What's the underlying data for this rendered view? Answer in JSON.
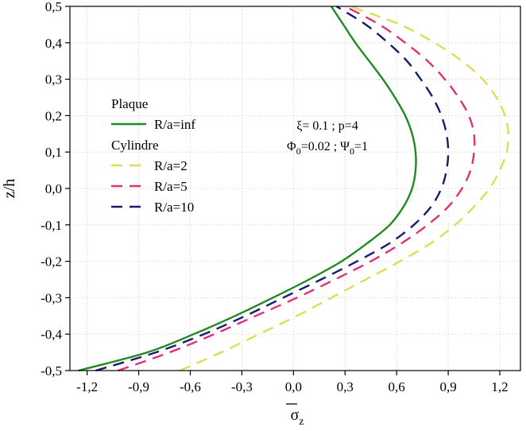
{
  "chart_data": {
    "type": "line",
    "title": "",
    "xlabel": "σz",
    "xlabel_symbol": "σ",
    "xlabel_subscript": "z",
    "ylabel": "z/h",
    "xlim": [
      -1.3,
      1.32
    ],
    "ylim": [
      -0.5,
      0.5
    ],
    "grid": true,
    "x_ticks": [
      -1.2,
      -0.9,
      -0.6,
      -0.3,
      0.0,
      0.3,
      0.6,
      0.9,
      1.2
    ],
    "x_tick_labels": [
      "-1,2",
      "-0,9",
      "-0,6",
      "-0,3",
      "0,0",
      "0,3",
      "0,6",
      "0,9",
      "1,2"
    ],
    "y_ticks": [
      -0.5,
      -0.4,
      -0.3,
      -0.2,
      -0.1,
      0.0,
      0.1,
      0.2,
      0.3,
      0.4,
      0.5
    ],
    "y_tick_labels": [
      "-0,5",
      "-0,4",
      "-0,3",
      "-0,2",
      "-0,1",
      "0,0",
      "0,1",
      "0,2",
      "0,3",
      "0,4",
      "0,5"
    ],
    "legend_position": "top-left",
    "legend_groups": [
      {
        "title": "Plaque",
        "entries": [
          0
        ]
      },
      {
        "title": "Cylindre",
        "entries": [
          1,
          2,
          3
        ]
      }
    ],
    "annotation_lines": [
      {
        "parts": [
          {
            "text": "ξ= 0.1 ; p=4"
          }
        ]
      },
      {
        "parts": [
          {
            "text": "Φ"
          },
          {
            "text": "0",
            "sub": true
          },
          {
            "text": "=0.02 ; "
          },
          {
            "text": "Ψ"
          },
          {
            "text": "0",
            "sub": true
          },
          {
            "text": "=1"
          }
        ]
      }
    ],
    "series": [
      {
        "name": "R/a=inf",
        "color": "#1f8a1f",
        "dash": "solid",
        "y": [
          -0.5,
          -0.45,
          -0.4,
          -0.35,
          -0.3,
          -0.25,
          -0.2,
          -0.15,
          -0.1,
          -0.05,
          0.0,
          0.05,
          0.1,
          0.15,
          0.2,
          0.25,
          0.3,
          0.35,
          0.4,
          0.45,
          0.5
        ],
        "x": [
          -1.25,
          -0.85,
          -0.58,
          -0.34,
          -0.12,
          0.09,
          0.28,
          0.43,
          0.56,
          0.64,
          0.69,
          0.71,
          0.71,
          0.69,
          0.65,
          0.59,
          0.52,
          0.44,
          0.36,
          0.29,
          0.22
        ]
      },
      {
        "name": "R/a=2",
        "color": "#dddd55",
        "dash": "dashed",
        "y": [
          -0.5,
          -0.45,
          -0.4,
          -0.35,
          -0.3,
          -0.25,
          -0.2,
          -0.15,
          -0.1,
          -0.05,
          0.0,
          0.05,
          0.1,
          0.15,
          0.2,
          0.25,
          0.3,
          0.35,
          0.4,
          0.45,
          0.5
        ],
        "x": [
          -0.66,
          -0.42,
          -0.2,
          0.02,
          0.22,
          0.42,
          0.62,
          0.8,
          0.94,
          1.05,
          1.14,
          1.2,
          1.24,
          1.25,
          1.23,
          1.18,
          1.1,
          0.98,
          0.82,
          0.62,
          0.33
        ]
      },
      {
        "name": "R/a=5",
        "color": "#e0307a",
        "dash": "dashed",
        "y": [
          -0.5,
          -0.45,
          -0.4,
          -0.35,
          -0.3,
          -0.25,
          -0.2,
          -0.15,
          -0.1,
          -0.05,
          0.0,
          0.05,
          0.1,
          0.15,
          0.2,
          0.25,
          0.3,
          0.35,
          0.4,
          0.45,
          0.5
        ],
        "x": [
          -1.02,
          -0.72,
          -0.46,
          -0.22,
          0.02,
          0.24,
          0.45,
          0.63,
          0.78,
          0.9,
          0.98,
          1.03,
          1.05,
          1.05,
          1.02,
          0.96,
          0.88,
          0.78,
          0.65,
          0.5,
          0.3
        ]
      },
      {
        "name": "R/a=10",
        "color": "#1a1a6e",
        "dash": "dashed",
        "y": [
          -0.5,
          -0.45,
          -0.4,
          -0.35,
          -0.3,
          -0.25,
          -0.2,
          -0.15,
          -0.1,
          -0.05,
          0.0,
          0.05,
          0.1,
          0.15,
          0.2,
          0.25,
          0.3,
          0.35,
          0.4,
          0.45,
          0.5
        ],
        "x": [
          -1.15,
          -0.8,
          -0.52,
          -0.28,
          -0.06,
          0.16,
          0.37,
          0.56,
          0.7,
          0.8,
          0.86,
          0.89,
          0.9,
          0.89,
          0.86,
          0.81,
          0.74,
          0.66,
          0.55,
          0.42,
          0.25
        ]
      }
    ]
  }
}
